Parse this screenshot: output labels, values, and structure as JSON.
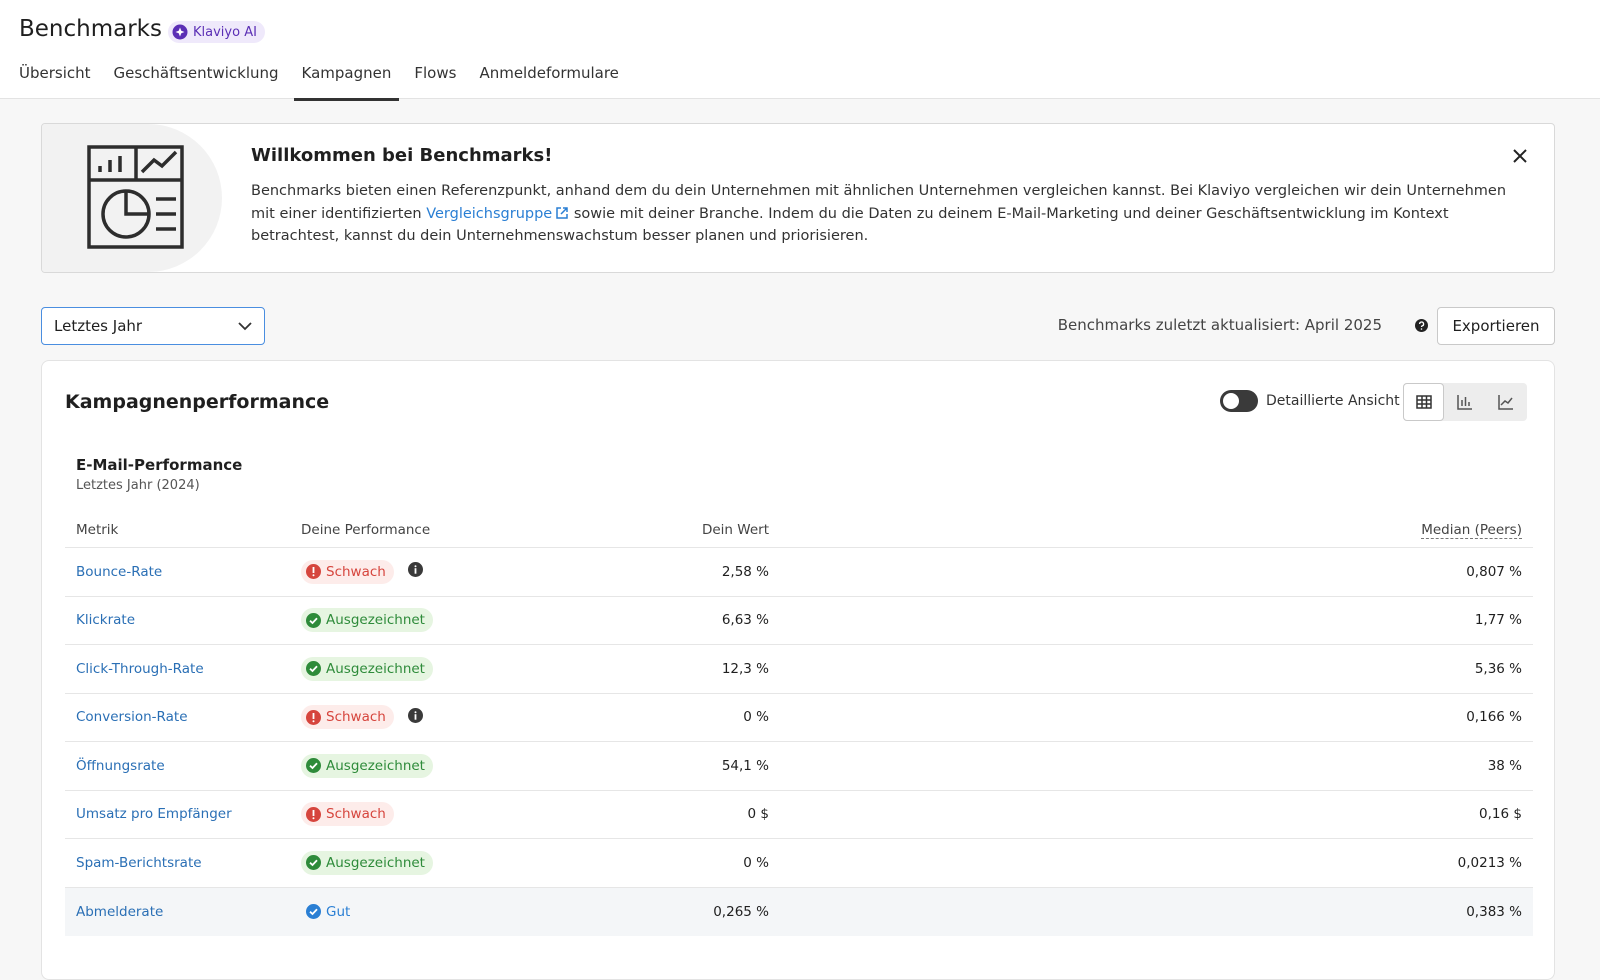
{
  "header": {
    "title": "Benchmarks",
    "badge": "Klaviyo AI",
    "tabs": [
      "Übersicht",
      "Geschäftsentwicklung",
      "Kampagnen",
      "Flows",
      "Anmeldeformulare"
    ],
    "active_tab": 2
  },
  "banner": {
    "title": "Willkommen bei Benchmarks!",
    "text_before": "Benchmarks bieten einen Referenzpunkt, anhand dem du dein Unternehmen mit ähnlichen Unternehmen vergleichen kannst. Bei Klaviyo vergleichen wir dein Unternehmen mit einer identifizierten",
    "link": "Vergleichsgruppe",
    "text_after": "sowie mit deiner Branche. Indem du die Daten zu deinem E-Mail-Marketing und deiner Geschäftsentwicklung im Kontext betrachtest, kannst du dein Unternehmenswachstum besser planen und priorisieren."
  },
  "controls": {
    "period": "Letztes Jahr",
    "updated": "Benchmarks zuletzt aktualisiert: April 2025",
    "export": "Exportieren"
  },
  "panel": {
    "title": "Kampagnenperformance",
    "toggle_label": "Detaillierte Ansicht",
    "section_title": "E-Mail-Performance",
    "section_subtitle": "Letztes Jahr (2024)",
    "table": {
      "columns": [
        "Metrik",
        "Deine Performance",
        "Dein Wert",
        "Median (Peers)"
      ],
      "rows": [
        {
          "metric": "Bounce-Rate",
          "status": "Schwach",
          "status_color": "#d6453d",
          "status_bg": "#fdecea",
          "info": true,
          "value": "2,58 %",
          "median": "0,807 %"
        },
        {
          "metric": "Klickrate",
          "status": "Ausgezeichnet",
          "status_color": "#2e8b3a",
          "status_bg": "#e6f5e1",
          "info": false,
          "value": "6,63 %",
          "median": "1,77 %"
        },
        {
          "metric": "Click-Through-Rate",
          "status": "Ausgezeichnet",
          "status_color": "#2e8b3a",
          "status_bg": "#e6f5e1",
          "info": false,
          "value": "12,3 %",
          "median": "5,36 %"
        },
        {
          "metric": "Conversion-Rate",
          "status": "Schwach",
          "status_color": "#d6453d",
          "status_bg": "#fdecea",
          "info": true,
          "value": "0 %",
          "median": "0,166 %"
        },
        {
          "metric": "Öffnungsrate",
          "status": "Ausgezeichnet",
          "status_color": "#2e8b3a",
          "status_bg": "#e6f5e1",
          "info": false,
          "value": "54,1 %",
          "median": "38 %"
        },
        {
          "metric": "Umsatz pro Empfänger",
          "status": "Schwach",
          "status_color": "#d6453d",
          "status_bg": "#fdecea",
          "info": false,
          "value": "0 $",
          "median": "0,16 $"
        },
        {
          "metric": "Spam-Berichtsrate",
          "status": "Ausgezeichnet",
          "status_color": "#2e8b3a",
          "status_bg": "#e6f5e1",
          "info": false,
          "value": "0 %",
          "median": "0,0213 %"
        },
        {
          "metric": "Abmelderate",
          "status": "Gut",
          "status_color": "#2a7fd4",
          "status_bg": "transparent",
          "info": false,
          "value": "0,265 %",
          "median": "0,383 %"
        }
      ]
    }
  }
}
